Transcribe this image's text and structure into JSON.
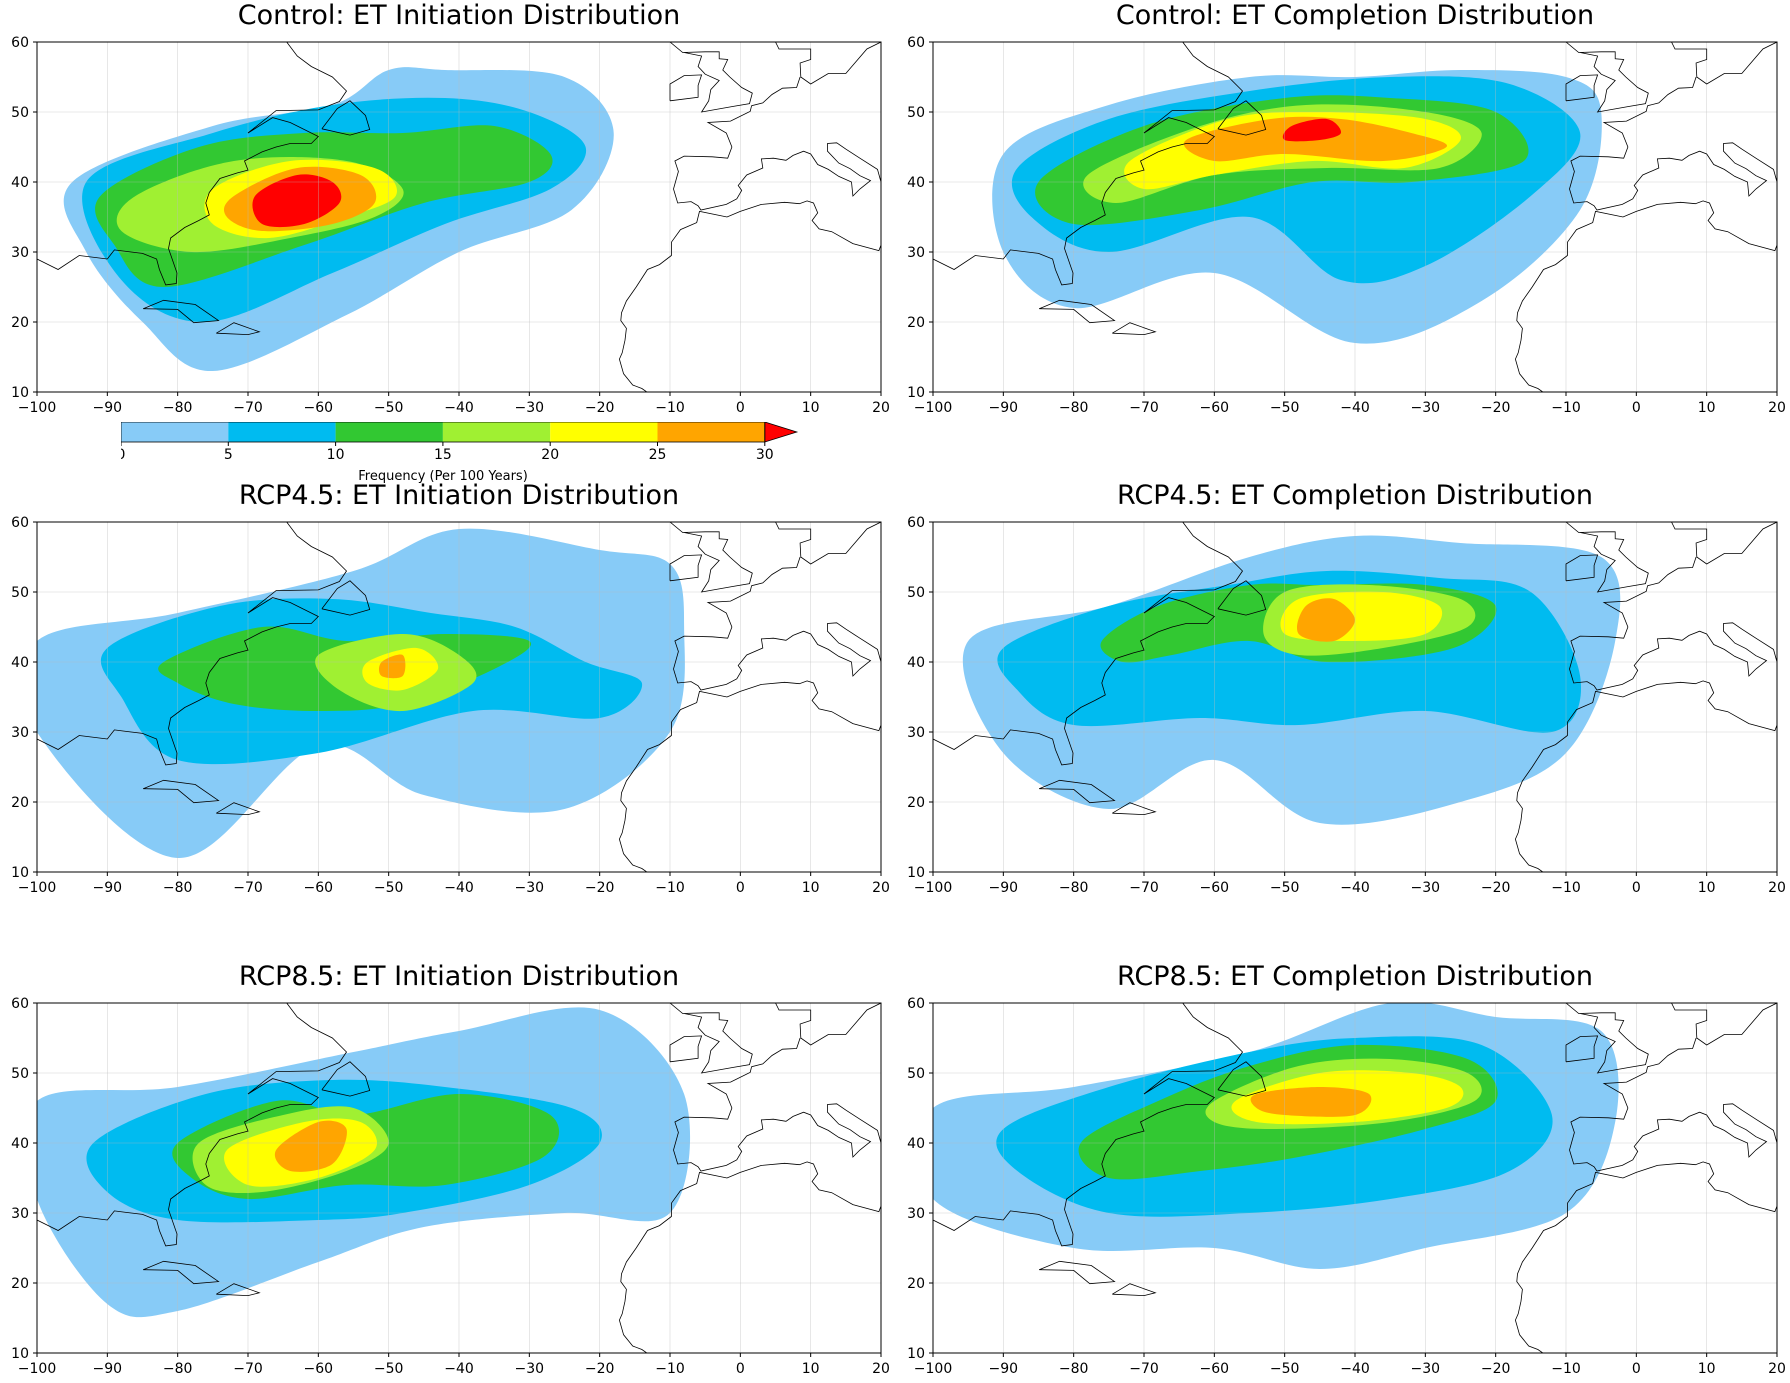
{
  "panels": [
    {
      "title": "Control: ET Initiation Distribution",
      "field": "ctrl_init"
    },
    {
      "title": "Control: ET Completion Distribution",
      "field": "ctrl_comp"
    },
    {
      "title": "RCP4.5: ET Initiation Distribution",
      "field": "r45_init"
    },
    {
      "title": "RCP4.5: ET Completion Distribution",
      "field": "r45_comp"
    },
    {
      "title": "RCP8.5: ET Initiation Distribution",
      "field": "r85_init"
    },
    {
      "title": "RCP8.5: ET Completion Distribution",
      "field": "r85_comp"
    }
  ],
  "x_ticks": [
    "−100",
    "−90",
    "−80",
    "−70",
    "−60",
    "−50",
    "−40",
    "−30",
    "−20",
    "−10",
    "0",
    "10",
    "20"
  ],
  "y_ticks": [
    "60",
    "50",
    "40",
    "30",
    "20",
    "10"
  ],
  "colorbar": {
    "label": "Frequency (Per 100 Years)",
    "ticks": [
      "0",
      "5",
      "10",
      "15",
      "20",
      "25",
      "30"
    ],
    "levels": [
      0,
      5,
      10,
      15,
      20,
      25,
      30
    ],
    "colors": [
      "#87cbf7",
      "#00bbf0",
      "#32c832",
      "#a0f032",
      "#ffff00",
      "#ffa500",
      "#ff0000"
    ],
    "extend": "max"
  },
  "chart_data": {
    "type": "contourf",
    "x_range": [
      -100,
      20
    ],
    "y_range": [
      10,
      60
    ],
    "x_unit": "longitude",
    "y_unit": "latitude",
    "units": "Frequency (Per 100 Years)",
    "fields": {
      "ctrl_init": [
        {
          "level": 0,
          "lon": [
            -95,
            -75,
            -58,
            -50,
            -42,
            -25,
            -18,
            -24,
            -40,
            -56,
            -75,
            -85,
            -93
          ],
          "lat": [
            40,
            48,
            51,
            56,
            56,
            55,
            47,
            36,
            30,
            21,
            13,
            20,
            30
          ]
        },
        {
          "level": 5,
          "lon": [
            -93,
            -75,
            -58,
            -42,
            -30,
            -22,
            -27,
            -42,
            -58,
            -76,
            -88
          ],
          "lat": [
            40,
            47,
            51,
            52,
            50,
            45,
            39,
            34,
            27,
            20,
            26
          ]
        },
        {
          "level": 10,
          "lon": [
            -91,
            -77,
            -62,
            -48,
            -35,
            -27,
            -30,
            -45,
            -62,
            -82,
            -89
          ],
          "lat": [
            38,
            45,
            47,
            47,
            48,
            44,
            40,
            37,
            31,
            25,
            31
          ]
        },
        {
          "level": 15,
          "lon": [
            -86,
            -72,
            -56,
            -48,
            -52,
            -64,
            -78,
            -88
          ],
          "lat": [
            38,
            43,
            43,
            39,
            35,
            32,
            30,
            33
          ]
        },
        {
          "level": 20,
          "lon": [
            -75,
            -64,
            -52,
            -49,
            -56,
            -67,
            -75
          ],
          "lat": [
            39,
            43,
            42,
            38,
            35,
            32,
            34
          ]
        },
        {
          "level": 25,
          "lon": [
            -72,
            -63,
            -54,
            -52,
            -58,
            -68,
            -73
          ],
          "lat": [
            38,
            42,
            41,
            37,
            34,
            33,
            35
          ]
        },
        {
          "level": 30,
          "lon": [
            -69,
            -63,
            -58,
            -57,
            -62,
            -68
          ],
          "lat": [
            38,
            41,
            40,
            37,
            34,
            34
          ]
        }
      ],
      "ctrl_comp": [
        {
          "level": 0,
          "lon": [
            -90,
            -75,
            -55,
            -40,
            -25,
            -10,
            -5,
            -8,
            -22,
            -40,
            -60,
            -80,
            -90
          ],
          "lat": [
            44,
            51,
            55,
            55,
            56,
            55,
            50,
            36,
            23,
            17,
            27,
            22,
            30
          ]
        },
        {
          "level": 5,
          "lon": [
            -88,
            -75,
            -55,
            -35,
            -18,
            -8,
            -15,
            -30,
            -42,
            -55,
            -75,
            -86
          ],
          "lat": [
            42,
            49,
            53,
            55,
            54,
            47,
            38,
            28,
            26,
            35,
            30,
            35
          ]
        },
        {
          "level": 10,
          "lon": [
            -85,
            -70,
            -50,
            -35,
            -20,
            -16,
            -32,
            -46,
            -62,
            -80
          ],
          "lat": [
            40,
            48,
            52,
            52,
            50,
            43,
            40,
            40,
            36,
            34
          ]
        },
        {
          "level": 15,
          "lon": [
            -78,
            -62,
            -47,
            -30,
            -22,
            -28,
            -44,
            -60,
            -74
          ],
          "lat": [
            41,
            48,
            51,
            50,
            47,
            42,
            42,
            41,
            37
          ]
        },
        {
          "level": 20,
          "lon": [
            -72,
            -58,
            -45,
            -30,
            -25,
            -33,
            -46,
            -60,
            -70
          ],
          "lat": [
            43,
            49,
            50,
            49,
            46,
            42,
            43,
            41,
            39
          ]
        },
        {
          "level": 25,
          "lon": [
            -64,
            -52,
            -42,
            -32,
            -27,
            -36,
            -50,
            -60
          ],
          "lat": [
            46,
            49,
            49,
            47,
            45,
            43,
            44,
            43
          ]
        },
        {
          "level": 30,
          "lon": [
            -49,
            -44,
            -42,
            -45,
            -50
          ],
          "lat": [
            48,
            49,
            47,
            46,
            46
          ]
        }
      ],
      "r45_init": [
        {
          "level": 0,
          "lon": [
            -100,
            -80,
            -55,
            -40,
            -20,
            -10,
            -8,
            -10,
            -25,
            -45,
            -60,
            -80,
            -100
          ],
          "lat": [
            43,
            47,
            53,
            59,
            56,
            54,
            45,
            30,
            19,
            21,
            28,
            12,
            30
          ]
        },
        {
          "level": 5,
          "lon": [
            -90,
            -74,
            -58,
            -44,
            -32,
            -22,
            -14,
            -20,
            -38,
            -60,
            -80,
            -88
          ],
          "lat": [
            42,
            48,
            49,
            47,
            45,
            40,
            37,
            32,
            33,
            27,
            26,
            35
          ]
        },
        {
          "level": 10,
          "lon": [
            -82,
            -68,
            -56,
            -42,
            -30,
            -35,
            -48,
            -60,
            -72,
            -80
          ],
          "lat": [
            40,
            45,
            43,
            44,
            43,
            39,
            34,
            33,
            34,
            37
          ]
        },
        {
          "level": 15,
          "lon": [
            -60,
            -48,
            -40,
            -38,
            -48,
            -57
          ],
          "lat": [
            41,
            44,
            41,
            37,
            33,
            36
          ]
        },
        {
          "level": 20,
          "lon": [
            -53,
            -46,
            -43,
            -48,
            -53
          ],
          "lat": [
            40,
            42,
            39,
            36,
            37
          ]
        },
        {
          "level": 25,
          "lon": [
            -51,
            -48,
            -48,
            -51
          ],
          "lat": [
            40,
            41,
            38,
            38
          ]
        }
      ],
      "r45_comp": [
        {
          "level": 0,
          "lon": [
            -95,
            -75,
            -55,
            -40,
            -25,
            -5,
            -3,
            -10,
            -25,
            -45,
            -60,
            -75,
            -90
          ],
          "lat": [
            43,
            48,
            55,
            58,
            57,
            55,
            43,
            27,
            20,
            17,
            26,
            19,
            27
          ]
        },
        {
          "level": 5,
          "lon": [
            -90,
            -75,
            -58,
            -44,
            -28,
            -15,
            -8,
            -12,
            -30,
            -48,
            -62,
            -80,
            -88
          ],
          "lat": [
            42,
            48,
            51,
            53,
            52,
            50,
            38,
            30,
            33,
            31,
            32,
            31,
            36
          ]
        },
        {
          "level": 10,
          "lon": [
            -76,
            -68,
            -55,
            -45,
            -30,
            -20,
            -26,
            -44,
            -55,
            -66,
            -73
          ],
          "lat": [
            43,
            48,
            51,
            51,
            51,
            48,
            42,
            40,
            43,
            41,
            40
          ]
        },
        {
          "level": 15,
          "lon": [
            -50,
            -38,
            -25,
            -24,
            -36,
            -48,
            -53
          ],
          "lat": [
            50,
            51,
            49,
            45,
            42,
            41,
            44
          ]
        },
        {
          "level": 20,
          "lon": [
            -48,
            -36,
            -28,
            -30,
            -40,
            -50
          ],
          "lat": [
            49,
            50,
            48,
            44,
            43,
            44
          ]
        },
        {
          "level": 25,
          "lon": [
            -47,
            -43,
            -40,
            -43,
            -48
          ],
          "lat": [
            48,
            49,
            46,
            43,
            44
          ]
        }
      ],
      "r85_init": [
        {
          "level": 0,
          "lon": [
            -100,
            -80,
            -55,
            -40,
            -20,
            -8,
            -10,
            -25,
            -45,
            -60,
            -80,
            -90,
            -100
          ],
          "lat": [
            46,
            48,
            53,
            56,
            59,
            47,
            30,
            30,
            28,
            23,
            16,
            17,
            32
          ]
        },
        {
          "level": 5,
          "lon": [
            -92,
            -76,
            -58,
            -42,
            -24,
            -20,
            -30,
            -48,
            -60,
            -80,
            -90
          ],
          "lat": [
            40,
            47,
            49,
            48,
            45,
            40,
            34,
            30,
            29,
            29,
            33
          ]
        },
        {
          "level": 10,
          "lon": [
            -80,
            -66,
            -55,
            -40,
            -27,
            -28,
            -42,
            -56,
            -70,
            -78
          ],
          "lat": [
            40,
            46,
            44,
            47,
            44,
            38,
            34,
            34,
            32,
            35
          ]
        },
        {
          "level": 15,
          "lon": [
            -77,
            -65,
            -55,
            -50,
            -56,
            -68,
            -76
          ],
          "lat": [
            40,
            44,
            45,
            40,
            36,
            33,
            34
          ]
        },
        {
          "level": 20,
          "lon": [
            -73,
            -62,
            -54,
            -52,
            -60,
            -70
          ],
          "lat": [
            39,
            43,
            43,
            39,
            35,
            34
          ]
        },
        {
          "level": 25,
          "lon": [
            -66,
            -60,
            -56,
            -58,
            -64
          ],
          "lat": [
            39,
            43,
            42,
            37,
            36
          ]
        }
      ],
      "r85_comp": [
        {
          "level": 0,
          "lon": [
            -100,
            -80,
            -55,
            -35,
            -20,
            -5,
            -3,
            -10,
            -30,
            -45,
            -60,
            -80,
            -100
          ],
          "lat": [
            45,
            48,
            53,
            60,
            58,
            56,
            43,
            30,
            25,
            22,
            25,
            25,
            32
          ]
        },
        {
          "level": 5,
          "lon": [
            -90,
            -75,
            -55,
            -40,
            -22,
            -12,
            -18,
            -35,
            -55,
            -75,
            -88
          ],
          "lat": [
            42,
            48,
            53,
            55,
            54,
            44,
            36,
            32,
            30,
            30,
            36
          ]
        },
        {
          "level": 10,
          "lon": [
            -79,
            -68,
            -55,
            -40,
            -24,
            -20,
            -30,
            -48,
            -62,
            -75
          ],
          "lat": [
            40,
            46,
            51,
            54,
            52,
            46,
            42,
            38,
            36,
            35
          ]
        },
        {
          "level": 15,
          "lon": [
            -60,
            -48,
            -35,
            -24,
            -23,
            -35,
            -52,
            -60
          ],
          "lat": [
            46,
            51,
            52,
            50,
            46,
            43,
            42,
            43
          ]
        },
        {
          "level": 20,
          "lon": [
            -57,
            -45,
            -32,
            -25,
            -27,
            -40,
            -54
          ],
          "lat": [
            46,
            50,
            50,
            48,
            45,
            43,
            43
          ]
        },
        {
          "level": 25,
          "lon": [
            -54,
            -45,
            -38,
            -40,
            -50,
            -54
          ],
          "lat": [
            47,
            48,
            47,
            44,
            44,
            45
          ]
        }
      ]
    }
  }
}
